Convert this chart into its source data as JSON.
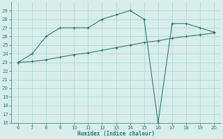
{
  "xlabel": "Humidex (Indice chaleur)",
  "x_line1": [
    6,
    7,
    8,
    9,
    10,
    11,
    12,
    13,
    14,
    15,
    16,
    17,
    18,
    19,
    20
  ],
  "y_line1": [
    23.0,
    24.0,
    26.0,
    27.0,
    27.0,
    27.0,
    28.0,
    28.5,
    29.0,
    28.0,
    16.0,
    27.5,
    27.5,
    27.0,
    26.5
  ],
  "x_line2": [
    6,
    7,
    8,
    9,
    10,
    11,
    12,
    13,
    14,
    15,
    16,
    17,
    18,
    19,
    20
  ],
  "y_line2": [
    23.0,
    23.1,
    23.3,
    23.6,
    23.9,
    24.1,
    24.4,
    24.7,
    25.0,
    25.3,
    25.5,
    25.8,
    26.0,
    26.2,
    26.4
  ],
  "line_color": "#2e7b6e",
  "bg_color": "#d8eeea",
  "grid_color": "#aed4cc",
  "xlim": [
    5.5,
    20.5
  ],
  "ylim": [
    16,
    30
  ],
  "yticks": [
    16,
    17,
    18,
    19,
    20,
    21,
    22,
    23,
    24,
    25,
    26,
    27,
    28,
    29
  ],
  "xticks": [
    6,
    7,
    8,
    9,
    10,
    11,
    12,
    13,
    14,
    15,
    16,
    17,
    18,
    19,
    20
  ]
}
